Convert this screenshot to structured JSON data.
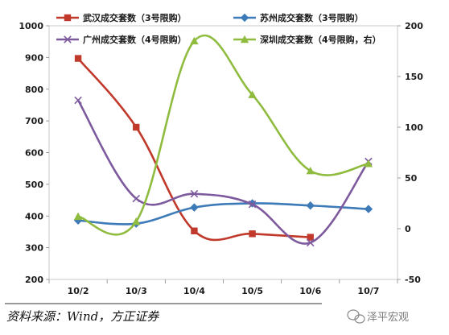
{
  "chart_data": {
    "type": "line",
    "categories": [
      "10/2",
      "10/3",
      "10/4",
      "10/5",
      "10/6",
      "10/7"
    ],
    "y_left": {
      "ticks": [
        200,
        300,
        400,
        500,
        600,
        700,
        800,
        900,
        1000
      ],
      "range": [
        200,
        1000
      ]
    },
    "y_right": {
      "ticks": [
        -50,
        0,
        50,
        100,
        150,
        200
      ],
      "range": [
        -50,
        200
      ]
    },
    "legend_position": "top",
    "series": [
      {
        "name": "武汉成交套数（3号限购）",
        "axis": "left",
        "color": "#c0392b",
        "marker": "square",
        "values": [
          897,
          680,
          353,
          344,
          333,
          null
        ]
      },
      {
        "name": "苏州成交套数（3号限购）",
        "axis": "left",
        "color": "#3d7ab8",
        "marker": "diamond",
        "values": [
          386,
          376,
          427,
          440,
          433,
          422
        ]
      },
      {
        "name": "广州成交套数（4号限购）",
        "axis": "left",
        "color": "#7d5a9e",
        "marker": "x",
        "values": [
          765,
          455,
          470,
          437,
          316,
          572
        ]
      },
      {
        "name": "深圳成交套数（4号限购，右）",
        "axis": "right",
        "color": "#8fbc3f",
        "marker": "triangle",
        "values": [
          12,
          7,
          185,
          132,
          57,
          64
        ]
      }
    ]
  },
  "source_text": "资料来源：Wind，方正证券",
  "watermark_text": "泽平宏观"
}
